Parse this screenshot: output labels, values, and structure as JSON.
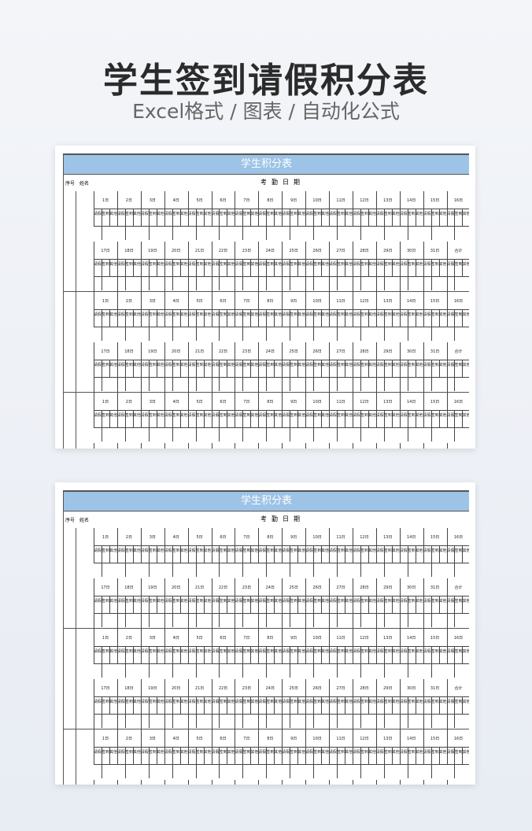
{
  "header": {
    "title": "学生签到请假积分表",
    "subtitle": "Excel格式 / 图表 / 自动化公式"
  },
  "sheet": {
    "title": "学生积分表",
    "col_seq": "序号",
    "col_name": "姓名",
    "col_date": "考勤日期",
    "days_top": [
      "1日",
      "2日",
      "3日",
      "4日",
      "5日",
      "6日",
      "7日",
      "8日",
      "9日",
      "10日",
      "11日",
      "12日",
      "13日",
      "14日",
      "15日",
      "16日"
    ],
    "days_bottom": [
      "17日",
      "18日",
      "19日",
      "20日",
      "21日",
      "22日",
      "23日",
      "24日",
      "25日",
      "26日",
      "27日",
      "28日",
      "29日",
      "30日",
      "31日",
      "合计"
    ],
    "sub_labels": [
      "请假",
      "签到",
      "其他"
    ]
  },
  "colors": {
    "bar": "#9dc3e6",
    "background": "#eef1f6"
  }
}
